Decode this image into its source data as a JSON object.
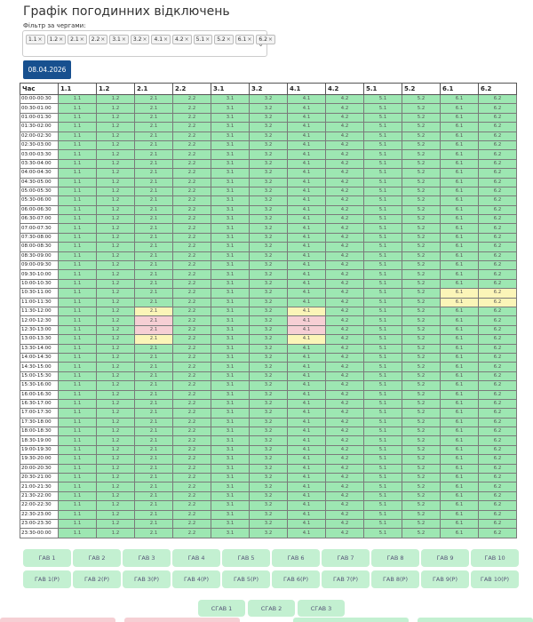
{
  "page": {
    "title": "Графік погодинних відключень",
    "filter_label": "Фільтр за чергами:",
    "date_button": "08.04.2026"
  },
  "filter": {
    "chips": [
      "1.1",
      "1.2",
      "2.1",
      "2.2",
      "3.1",
      "3.2",
      "4.1",
      "4.2",
      "5.1",
      "5.2",
      "6.1",
      "6.2"
    ],
    "chip_close": "×",
    "caret": "⌄"
  },
  "table": {
    "time_header": "Час",
    "queues": [
      "1.1",
      "1.2",
      "2.1",
      "2.2",
      "3.1",
      "3.2",
      "4.1",
      "4.2",
      "5.1",
      "5.2",
      "6.1",
      "6.2"
    ],
    "slots": [
      "00:00-00:30",
      "00:30-01:00",
      "01:00-01:30",
      "01:30-02:00",
      "02:00-02:30",
      "02:30-03:00",
      "03:00-03:30",
      "03:30-04:00",
      "04:00-04:30",
      "04:30-05:00",
      "05:00-05:30",
      "05:30-06:00",
      "06:00-06:30",
      "06:30-07:00",
      "07:00-07:30",
      "07:30-08:00",
      "08:00-08:30",
      "08:30-09:00",
      "09:00-09:30",
      "09:30-10:00",
      "10:00-10:30",
      "10:30-11:00",
      "11:00-11:30",
      "11:30-12:00",
      "12:00-12:30",
      "12:30-13:00",
      "13:00-13:30",
      "13:30-14:00",
      "14:00-14:30",
      "14:30-15:00",
      "15:00-15:30",
      "15:30-16:00",
      "16:00-16:30",
      "16:30-17:00",
      "17:00-17:30",
      "17:30-18:00",
      "18:00-18:30",
      "18:30-19:00",
      "19:00-19:30",
      "19:30-20:00",
      "20:00-20:30",
      "20:30-21:00",
      "21:00-21:30",
      "21:30-22:00",
      "22:00-22:30",
      "22:30-23:00",
      "23:00-23:30",
      "23:30-00:00"
    ],
    "status_colors": {
      "on": "#9de7b2",
      "possible": "#fbf5b8",
      "off": "#f6cfd4"
    },
    "status_overrides": [
      {
        "slot": "10:30-11:00",
        "queue": "6.1",
        "status": "possible"
      },
      {
        "slot": "10:30-11:00",
        "queue": "6.2",
        "status": "possible"
      },
      {
        "slot": "11:00-11:30",
        "queue": "6.1",
        "status": "possible"
      },
      {
        "slot": "11:00-11:30",
        "queue": "6.2",
        "status": "possible"
      },
      {
        "slot": "11:30-12:00",
        "queue": "2.1",
        "status": "possible"
      },
      {
        "slot": "11:30-12:00",
        "queue": "4.1",
        "status": "possible"
      },
      {
        "slot": "12:00-12:30",
        "queue": "2.1",
        "status": "off"
      },
      {
        "slot": "12:00-12:30",
        "queue": "4.1",
        "status": "off"
      },
      {
        "slot": "12:30-13:00",
        "queue": "2.1",
        "status": "off"
      },
      {
        "slot": "12:30-13:00",
        "queue": "4.1",
        "status": "off"
      },
      {
        "slot": "13:00-13:30",
        "queue": "2.1",
        "status": "possible"
      },
      {
        "slot": "13:00-13:30",
        "queue": "4.1",
        "status": "possible"
      }
    ]
  },
  "buttons": {
    "gav": [
      "ГАВ 1",
      "ГАВ 2",
      "ГАВ 3",
      "ГАВ 4",
      "ГАВ 5",
      "ГАВ 6",
      "ГАВ 7",
      "ГАВ 8",
      "ГАВ 9",
      "ГАВ 10"
    ],
    "gav_r": [
      "ГАВ 1(Р)",
      "ГАВ 2(Р)",
      "ГАВ 3(Р)",
      "ГАВ 4(Р)",
      "ГАВ 5(Р)",
      "ГАВ 6(Р)",
      "ГАВ 7(Р)",
      "ГАВ 8(Р)",
      "ГАВ 9(Р)",
      "ГАВ 10(Р)"
    ],
    "sgav": [
      "СГАВ 1",
      "СГАВ 2",
      "СГАВ 3"
    ]
  }
}
